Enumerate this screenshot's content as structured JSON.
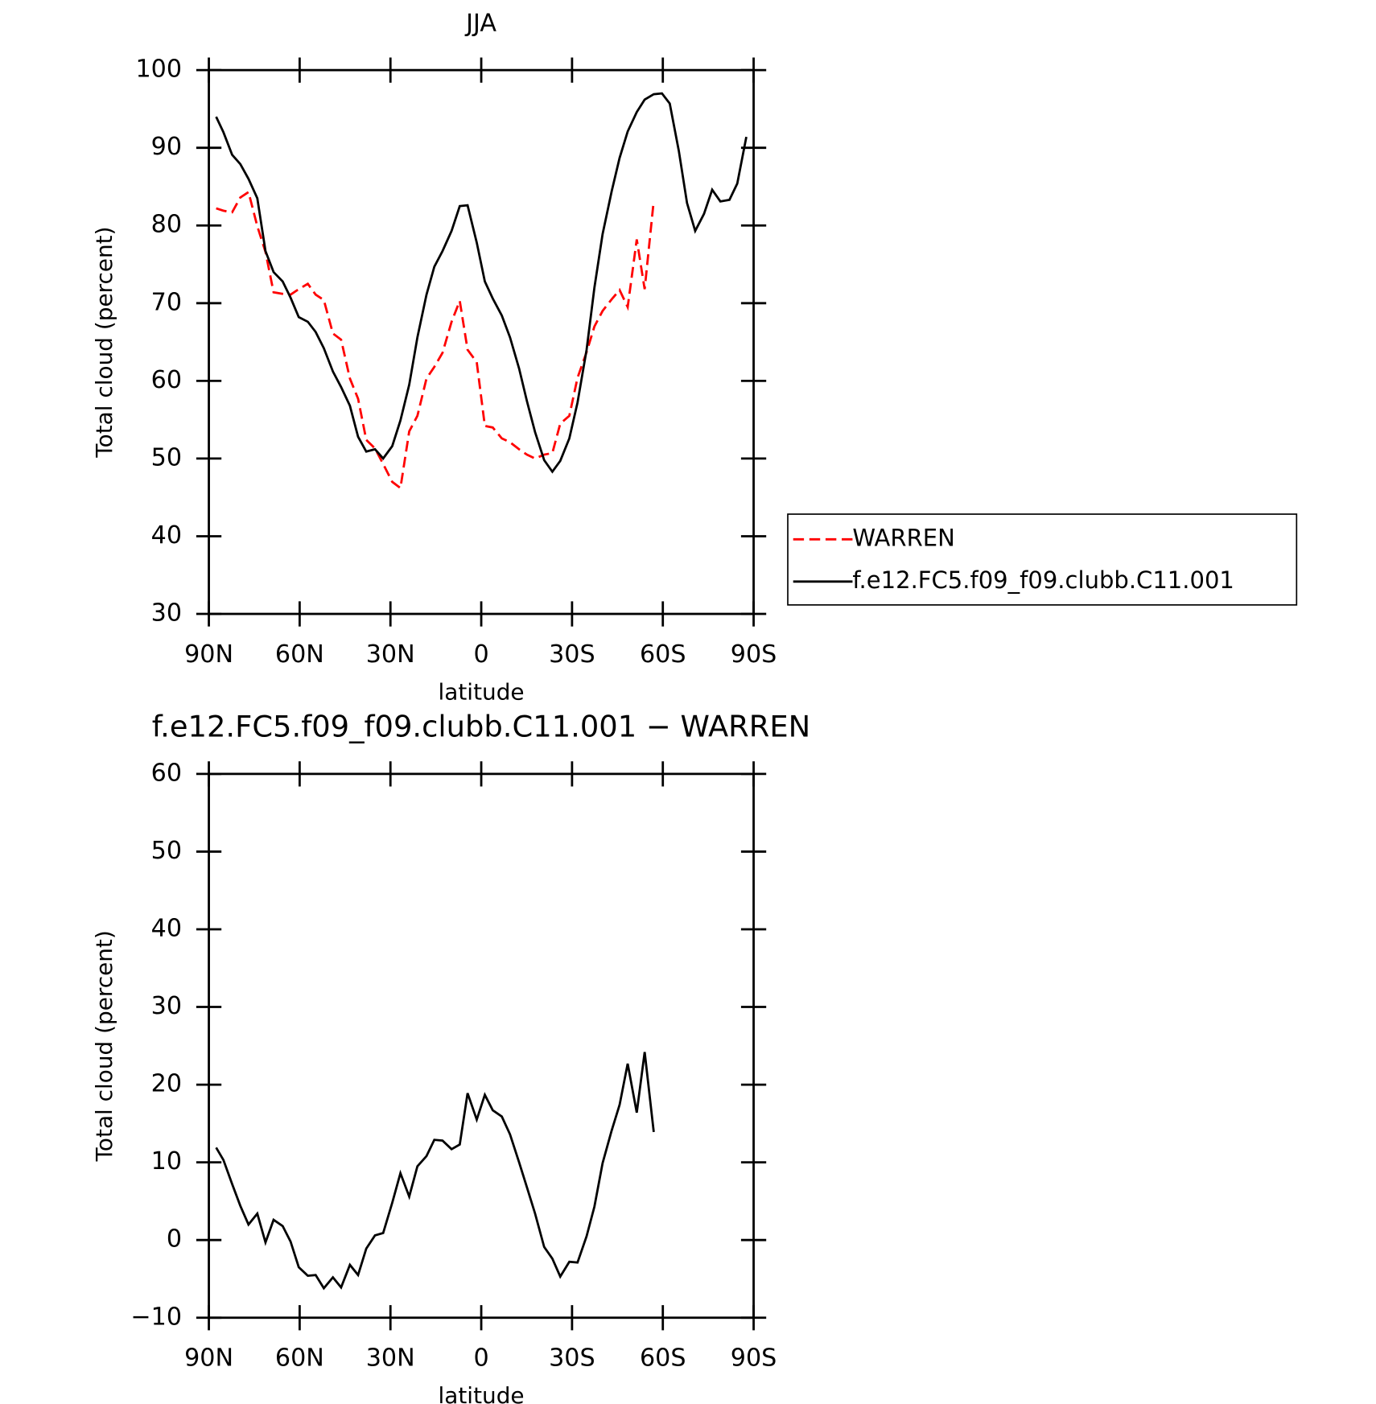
{
  "chart_data": [
    {
      "type": "line",
      "title": "JJA",
      "xlabel": "latitude",
      "ylabel": "Total cloud (percent)",
      "xlim": [
        90,
        -90
      ],
      "ylim": [
        30,
        100
      ],
      "xticks": [
        {
          "value": 90,
          "label": "90N"
        },
        {
          "value": 60,
          "label": "60N"
        },
        {
          "value": 30,
          "label": "30N"
        },
        0,
        {
          "value": -30,
          "label": "30S"
        },
        {
          "value": -60,
          "label": "60S"
        },
        {
          "value": -90,
          "label": "90S"
        }
      ],
      "yticks": [
        30,
        40,
        50,
        60,
        70,
        80,
        90,
        100
      ],
      "legend": "right",
      "x": [
        87.6,
        85.2,
        82.3,
        79.6,
        76.9,
        74.0,
        71.3,
        68.6,
        65.6,
        63.0,
        60.3,
        57.3,
        54.7,
        52.0,
        49.0,
        46.3,
        43.4,
        40.7,
        38.0,
        35.1,
        32.4,
        29.4,
        26.7,
        23.8,
        21.1,
        18.1,
        15.5,
        12.8,
        9.8,
        7.1,
        4.5,
        1.5,
        -1.2,
        -3.8,
        -6.8,
        -9.5,
        -12.5,
        -15.1,
        -17.8,
        -20.8,
        -23.5,
        -26.1,
        -29.1,
        -31.8,
        -34.8,
        -37.4,
        -40.1,
        -43.1,
        -45.7,
        -48.4,
        -51.4,
        -54.0,
        -57.0,
        -59.7,
        -62.3,
        -65.3,
        -68.0,
        -70.7,
        -73.6,
        -76.3,
        -79.0,
        -82.0,
        -84.6,
        -87.6
      ],
      "series": [
        {
          "name": "WARREN",
          "color": "#ff0000",
          "style": "dashed",
          "values": [
            82.2,
            81.9,
            81.7,
            83.6,
            84.3,
            79.9,
            76.6,
            71.4,
            71.2,
            71.1,
            71.8,
            72.5,
            71.1,
            70.4,
            66.1,
            65.3,
            60.3,
            57.7,
            52.4,
            51.3,
            49.3,
            47.0,
            46.2,
            53.5,
            55.5,
            60.3,
            61.8,
            63.6,
            67.6,
            70.3,
            64.0,
            62.4,
            54.2,
            54.0,
            52.6,
            52.1,
            51.2,
            50.5,
            50.0,
            50.5,
            50.7,
            54.5,
            55.5,
            60.4,
            63.7,
            67.0,
            69.0,
            70.5,
            71.7,
            69.5,
            78.2,
            71.8,
            83.2,
            null,
            null,
            null,
            null,
            null,
            null,
            null,
            null,
            null,
            null,
            null
          ]
        },
        {
          "name": "f.e12.FC5.f09_f09.clubb.C11.001",
          "color": "#000000",
          "style": "solid",
          "values": [
            94.0,
            92.0,
            89.1,
            87.9,
            86.0,
            83.5,
            76.7,
            74.0,
            72.8,
            70.7,
            68.2,
            67.6,
            66.3,
            64.2,
            61.2,
            59.2,
            56.8,
            52.8,
            50.9,
            51.2,
            50.0,
            51.6,
            54.9,
            59.5,
            65.6,
            71.1,
            74.7,
            76.7,
            79.3,
            82.5,
            82.6,
            77.8,
            72.8,
            70.6,
            68.4,
            65.6,
            61.6,
            57.4,
            53.4,
            49.8,
            48.3,
            49.7,
            52.6,
            57.2,
            64.0,
            72.0,
            78.9,
            84.4,
            88.7,
            92.1,
            94.6,
            96.2,
            96.9,
            97.0,
            95.7,
            89.6,
            82.9,
            79.3,
            81.5,
            84.6,
            83.1,
            83.3,
            85.4,
            91.4
          ]
        }
      ]
    },
    {
      "type": "line",
      "title": "f.e12.FC5.f09_f09.clubb.C11.001 − WARREN",
      "xlabel": "latitude",
      "ylabel": "Total cloud (percent)",
      "xlim": [
        90,
        -90
      ],
      "ylim": [
        -10,
        60
      ],
      "xticks": [
        {
          "value": 90,
          "label": "90N"
        },
        {
          "value": 60,
          "label": "60N"
        },
        {
          "value": 30,
          "label": "30N"
        },
        0,
        {
          "value": -30,
          "label": "30S"
        },
        {
          "value": -60,
          "label": "60S"
        },
        {
          "value": -90,
          "label": "90S"
        }
      ],
      "yticks": [
        {
          "value": -10,
          "label": "−10"
        },
        0,
        10,
        20,
        30,
        40,
        50,
        60
      ],
      "x": [
        87.6,
        85.2,
        82.3,
        79.6,
        76.9,
        74.0,
        71.3,
        68.6,
        65.6,
        63.0,
        60.3,
        57.3,
        54.7,
        52.0,
        49.0,
        46.3,
        43.4,
        40.7,
        38.0,
        35.1,
        32.4,
        29.4,
        26.7,
        23.8,
        21.1,
        18.1,
        15.5,
        12.8,
        9.8,
        7.1,
        4.5,
        1.5,
        -1.2,
        -3.8,
        -6.8,
        -9.5,
        -12.5,
        -15.1,
        -17.8,
        -20.8,
        -23.5,
        -26.1,
        -29.1,
        -31.8,
        -34.8,
        -37.4,
        -40.1,
        -43.1,
        -45.7,
        -48.4,
        -51.4,
        -54.0,
        -57.0,
        -59.7,
        -62.3,
        -65.3,
        -68.0,
        -70.7,
        -73.6,
        -76.3,
        -79.0,
        -82.0,
        -84.6,
        -87.6
      ],
      "series": [
        {
          "color": "#000000",
          "style": "solid",
          "values": [
            11.9,
            10.3,
            7.2,
            4.4,
            2.0,
            3.4,
            -0.3,
            2.6,
            1.8,
            -0.2,
            -3.5,
            -4.6,
            -4.5,
            -6.2,
            -4.8,
            -6.1,
            -3.2,
            -4.5,
            -1.1,
            0.6,
            0.9,
            4.8,
            8.6,
            5.6,
            9.5,
            10.8,
            12.9,
            12.8,
            11.7,
            12.3,
            18.9,
            15.5,
            18.7,
            16.7,
            15.9,
            13.6,
            10.0,
            6.8,
            3.4,
            -0.9,
            -2.4,
            -4.7,
            -2.8,
            -2.9,
            0.5,
            4.3,
            9.9,
            14.1,
            17.4,
            22.7,
            16.4,
            24.2,
            13.9,
            null,
            null,
            null,
            null,
            null,
            null,
            null,
            null,
            null,
            null,
            null
          ]
        }
      ]
    }
  ]
}
